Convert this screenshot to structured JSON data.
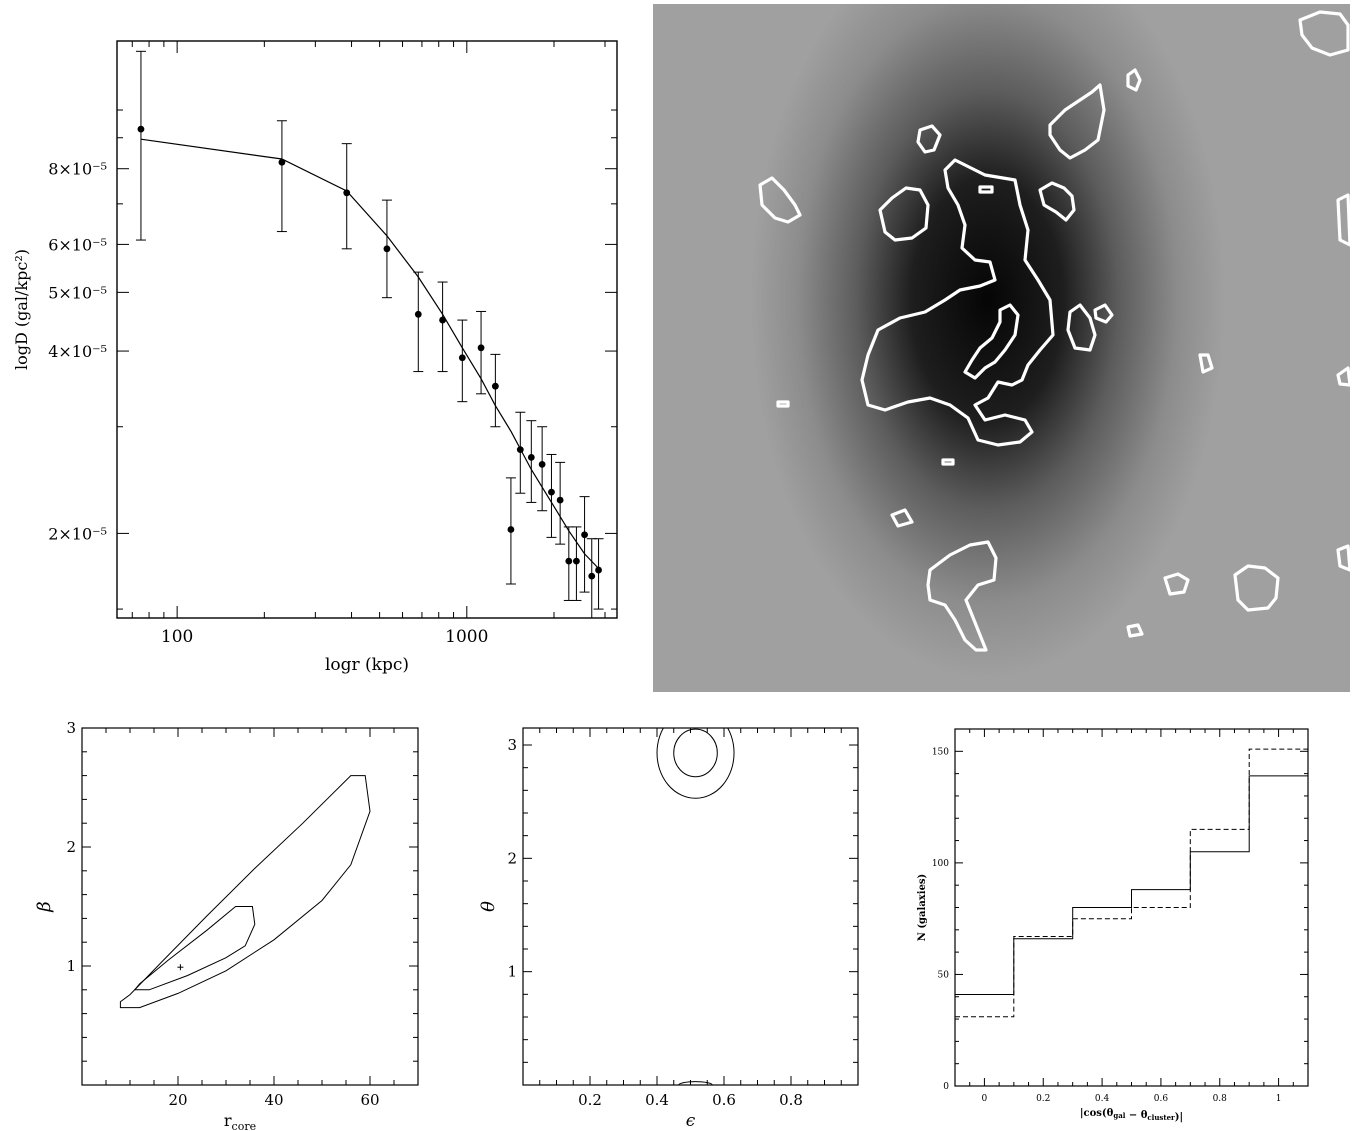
{
  "chart_data": [
    {
      "type": "scatter",
      "panel": "radial-profile",
      "xlabel": "logr (kpc)",
      "ylabel": "logD (gal/kpc²)",
      "xscale": "log",
      "yscale": "log",
      "xlim": [
        62,
        3300
      ],
      "ylim": [
        1.45e-05,
        0.00013
      ],
      "x_ticks": [
        {
          "value": 100,
          "label": "100"
        },
        {
          "value": 1000,
          "label": "1000"
        }
      ],
      "y_ticks": [
        {
          "value": 8e-05,
          "label": "8×10⁻⁵"
        },
        {
          "value": 6e-05,
          "label": "6×10⁻⁵"
        },
        {
          "value": 5e-05,
          "label": "5×10⁻⁵"
        },
        {
          "value": 4e-05,
          "label": "4×10⁻⁵"
        },
        {
          "value": 2e-05,
          "label": "2×10⁻⁵"
        }
      ],
      "points": [
        {
          "x": 75,
          "y": 9.3e-05,
          "lo": 6.1e-05,
          "hi": 0.000125
        },
        {
          "x": 230,
          "y": 8.2e-05,
          "lo": 6.3e-05,
          "hi": 9.6e-05
        },
        {
          "x": 385,
          "y": 7.3e-05,
          "lo": 5.9e-05,
          "hi": 8.8e-05
        },
        {
          "x": 530,
          "y": 5.9e-05,
          "lo": 4.9e-05,
          "hi": 7.1e-05
        },
        {
          "x": 680,
          "y": 4.6e-05,
          "lo": 3.7e-05,
          "hi": 5.4e-05
        },
        {
          "x": 825,
          "y": 4.5e-05,
          "lo": 3.7e-05,
          "hi": 5.2e-05
        },
        {
          "x": 965,
          "y": 3.9e-05,
          "lo": 3.3e-05,
          "hi": 4.5e-05
        },
        {
          "x": 1120,
          "y": 4.05e-05,
          "lo": 3.4e-05,
          "hi": 4.65e-05
        },
        {
          "x": 1255,
          "y": 3.5e-05,
          "lo": 3e-05,
          "hi": 3.95e-05
        },
        {
          "x": 1420,
          "y": 2.03e-05,
          "lo": 1.65e-05,
          "hi": 2.47e-05
        },
        {
          "x": 1530,
          "y": 2.75e-05,
          "lo": 2.33e-05,
          "hi": 3.17e-05
        },
        {
          "x": 1670,
          "y": 2.67e-05,
          "lo": 2.25e-05,
          "hi": 3.07e-05
        },
        {
          "x": 1820,
          "y": 2.6e-05,
          "lo": 2.18e-05,
          "hi": 3e-05
        },
        {
          "x": 1960,
          "y": 2.34e-05,
          "lo": 1.97e-05,
          "hi": 2.7e-05
        },
        {
          "x": 2100,
          "y": 2.27e-05,
          "lo": 1.92e-05,
          "hi": 2.62e-05
        },
        {
          "x": 2250,
          "y": 1.8e-05,
          "lo": 1.55e-05,
          "hi": 2.05e-05
        },
        {
          "x": 2390,
          "y": 1.8e-05,
          "lo": 1.55e-05,
          "hi": 2.05e-05
        },
        {
          "x": 2550,
          "y": 1.99e-05,
          "lo": 1.6e-05,
          "hi": 2.3e-05
        },
        {
          "x": 2700,
          "y": 1.7e-05,
          "lo": 1.45e-05,
          "hi": 1.96e-05
        },
        {
          "x": 2850,
          "y": 1.74e-05,
          "lo": 1.5e-05,
          "hi": 1.96e-05
        }
      ],
      "fit_curve": [
        [
          75,
          8.95e-05
        ],
        [
          230,
          8.3e-05
        ],
        [
          385,
          7.35e-05
        ],
        [
          530,
          6.2e-05
        ],
        [
          680,
          5.3e-05
        ],
        [
          825,
          4.6e-05
        ],
        [
          965,
          4.05e-05
        ],
        [
          1120,
          3.6e-05
        ],
        [
          1255,
          3.25e-05
        ],
        [
          1420,
          2.95e-05
        ],
        [
          1670,
          2.55e-05
        ],
        [
          1960,
          2.25e-05
        ],
        [
          2250,
          2.02e-05
        ],
        [
          2550,
          1.85e-05
        ],
        [
          2850,
          1.75e-05
        ]
      ]
    },
    {
      "type": "contour",
      "panel": "rcore-beta",
      "xlabel": "r",
      "xlabel_sub": "core",
      "ylabel": "β",
      "xlim": [
        0,
        70
      ],
      "ylim": [
        0,
        3
      ],
      "x_ticks": [
        20,
        40,
        60
      ],
      "y_ticks": [
        1,
        2,
        3
      ],
      "best_fit": {
        "x": 20.5,
        "y": 0.99
      },
      "contours": [
        [
          [
            8,
            0.65
          ],
          [
            12,
            0.65
          ],
          [
            20,
            0.77
          ],
          [
            30,
            0.96
          ],
          [
            40,
            1.22
          ],
          [
            50,
            1.55
          ],
          [
            56,
            1.85
          ],
          [
            60,
            2.3
          ],
          [
            59,
            2.6
          ],
          [
            56,
            2.6
          ],
          [
            46,
            2.2
          ],
          [
            36,
            1.82
          ],
          [
            26,
            1.42
          ],
          [
            17,
            1.05
          ],
          [
            10,
            0.76
          ],
          [
            8,
            0.7
          ],
          [
            8,
            0.65
          ]
        ],
        [
          [
            11,
            0.8
          ],
          [
            14,
            0.8
          ],
          [
            22,
            0.92
          ],
          [
            30,
            1.07
          ],
          [
            34,
            1.17
          ],
          [
            36,
            1.35
          ],
          [
            35.5,
            1.5
          ],
          [
            32,
            1.5
          ],
          [
            26,
            1.3
          ],
          [
            18,
            1.05
          ],
          [
            12,
            0.85
          ],
          [
            11,
            0.8
          ]
        ]
      ]
    },
    {
      "type": "contour",
      "panel": "epsilon-theta",
      "xlabel": "ϵ",
      "ylabel": "θ",
      "xlim": [
        0,
        1
      ],
      "ylim": [
        0,
        3.15
      ],
      "x_ticks": [
        0.2,
        0.4,
        0.6,
        0.8
      ],
      "y_ticks": [
        1,
        2,
        3
      ],
      "contours": [
        {
          "cx": 0.515,
          "cy": 2.93,
          "rx": 0.065,
          "ry": 0.21
        },
        {
          "cx": 0.515,
          "cy": 2.93,
          "rx": 0.115,
          "ry": 0.4
        },
        {
          "cx": 0.515,
          "cy": 0.0,
          "rx": 0.05,
          "ry": 0.03
        }
      ]
    },
    {
      "type": "histogram",
      "panel": "alignment-histogram",
      "xlabel": "|cos(θ",
      "xlabel_sub1": "gal",
      "xlabel_mid": " − θ",
      "xlabel_sub2": "cluster",
      "xlabel_end": ")|",
      "ylabel": "N (galaxies)",
      "xlim": [
        -0.1,
        1.1
      ],
      "ylim": [
        0,
        160
      ],
      "x_ticks": [
        0,
        0.2,
        0.4,
        0.6,
        0.8,
        1
      ],
      "y_ticks": [
        0,
        50,
        100,
        150
      ],
      "bin_edges": [
        -0.1,
        0.1,
        0.3,
        0.5,
        0.7,
        0.9,
        1.1
      ],
      "series": [
        {
          "style": "solid",
          "values": [
            41,
            66,
            80,
            88,
            105,
            139
          ]
        },
        {
          "style": "dashed",
          "values": [
            31,
            67,
            75,
            80,
            115,
            151
          ]
        }
      ]
    }
  ],
  "density_map": {
    "contours": [
      [
        [
          955,
          160
        ],
        [
          985,
          175
        ],
        [
          1015,
          180
        ],
        [
          1020,
          205
        ],
        [
          1028,
          230
        ],
        [
          1025,
          260
        ],
        [
          1038,
          280
        ],
        [
          1050,
          300
        ],
        [
          1053,
          335
        ],
        [
          1040,
          350
        ],
        [
          1028,
          365
        ],
        [
          1022,
          380
        ],
        [
          1012,
          385
        ],
        [
          998,
          382
        ],
        [
          988,
          398
        ],
        [
          975,
          405
        ],
        [
          985,
          420
        ],
        [
          1005,
          415
        ],
        [
          1025,
          420
        ],
        [
          1032,
          432
        ],
        [
          1020,
          442
        ],
        [
          998,
          445
        ],
        [
          978,
          440
        ],
        [
          968,
          418
        ],
        [
          950,
          405
        ],
        [
          930,
          398
        ],
        [
          908,
          402
        ],
        [
          885,
          410
        ],
        [
          868,
          405
        ],
        [
          862,
          380
        ],
        [
          868,
          355
        ],
        [
          878,
          330
        ],
        [
          900,
          318
        ],
        [
          925,
          312
        ],
        [
          945,
          300
        ],
        [
          960,
          290
        ],
        [
          980,
          286
        ],
        [
          995,
          280
        ],
        [
          990,
          262
        ],
        [
          975,
          260
        ],
        [
          962,
          248
        ],
        [
          965,
          225
        ],
        [
          958,
          205
        ],
        [
          948,
          188
        ],
        [
          945,
          170
        ],
        [
          955,
          160
        ]
      ],
      [
        [
          1000,
          310
        ],
        [
          1010,
          305
        ],
        [
          1018,
          315
        ],
        [
          1015,
          335
        ],
        [
          1005,
          350
        ],
        [
          995,
          362
        ],
        [
          985,
          368
        ],
        [
          975,
          378
        ],
        [
          965,
          372
        ],
        [
          972,
          360
        ],
        [
          980,
          348
        ],
        [
          992,
          338
        ],
        [
          1000,
          322
        ],
        [
          1000,
          310
        ]
      ],
      [
        [
          880,
          210
        ],
        [
          892,
          198
        ],
        [
          906,
          188
        ],
        [
          920,
          190
        ],
        [
          928,
          205
        ],
        [
          926,
          228
        ],
        [
          912,
          238
        ],
        [
          895,
          240
        ],
        [
          885,
          232
        ],
        [
          880,
          210
        ]
      ],
      [
        [
          760,
          185
        ],
        [
          772,
          178
        ],
        [
          784,
          190
        ],
        [
          795,
          205
        ],
        [
          800,
          215
        ],
        [
          788,
          222
        ],
        [
          775,
          218
        ],
        [
          762,
          205
        ],
        [
          760,
          185
        ]
      ],
      [
        [
          920,
          130
        ],
        [
          932,
          126
        ],
        [
          940,
          135
        ],
        [
          934,
          150
        ],
        [
          925,
          152
        ],
        [
          918,
          142
        ],
        [
          920,
          130
        ]
      ],
      [
        [
          1050,
          125
        ],
        [
          1065,
          110
        ],
        [
          1080,
          100
        ],
        [
          1092,
          92
        ],
        [
          1100,
          85
        ],
        [
          1104,
          110
        ],
        [
          1098,
          140
        ],
        [
          1085,
          150
        ],
        [
          1070,
          158
        ],
        [
          1060,
          150
        ],
        [
          1050,
          135
        ],
        [
          1050,
          125
        ]
      ],
      [
        [
          1040,
          190
        ],
        [
          1052,
          183
        ],
        [
          1064,
          188
        ],
        [
          1072,
          196
        ],
        [
          1074,
          210
        ],
        [
          1066,
          220
        ],
        [
          1056,
          212
        ],
        [
          1044,
          205
        ],
        [
          1040,
          190
        ]
      ],
      [
        [
          1070,
          312
        ],
        [
          1080,
          305
        ],
        [
          1090,
          318
        ],
        [
          1095,
          335
        ],
        [
          1090,
          350
        ],
        [
          1075,
          348
        ],
        [
          1068,
          330
        ],
        [
          1070,
          312
        ]
      ],
      [
        [
          1095,
          310
        ],
        [
          1105,
          305
        ],
        [
          1112,
          315
        ],
        [
          1106,
          322
        ],
        [
          1096,
          318
        ],
        [
          1095,
          310
        ]
      ],
      [
        [
          1128,
          75
        ],
        [
          1135,
          70
        ],
        [
          1140,
          80
        ],
        [
          1136,
          90
        ],
        [
          1128,
          86
        ],
        [
          1128,
          75
        ]
      ],
      [
        [
          1300,
          20
        ],
        [
          1320,
          12
        ],
        [
          1340,
          14
        ],
        [
          1348,
          25
        ],
        [
          1348,
          50
        ],
        [
          1330,
          55
        ],
        [
          1312,
          48
        ],
        [
          1302,
          35
        ],
        [
          1300,
          20
        ]
      ],
      [
        [
          1338,
          200
        ],
        [
          1348,
          195
        ],
        [
          1350,
          245
        ],
        [
          1340,
          240
        ],
        [
          1338,
          200
        ]
      ],
      [
        [
          1338,
          375
        ],
        [
          1348,
          368
        ],
        [
          1350,
          385
        ],
        [
          1340,
          384
        ],
        [
          1338,
          375
        ]
      ],
      [
        [
          1200,
          355
        ],
        [
          1208,
          355
        ],
        [
          1212,
          368
        ],
        [
          1203,
          372
        ],
        [
          1200,
          355
        ]
      ],
      [
        [
          930,
          570
        ],
        [
          950,
          555
        ],
        [
          970,
          545
        ],
        [
          988,
          542
        ],
        [
          996,
          558
        ],
        [
          994,
          580
        ],
        [
          978,
          585
        ],
        [
          966,
          600
        ],
        [
          976,
          625
        ],
        [
          986,
          650
        ],
        [
          976,
          650
        ],
        [
          965,
          640
        ],
        [
          955,
          620
        ],
        [
          945,
          605
        ],
        [
          930,
          600
        ],
        [
          928,
          585
        ],
        [
          930,
          570
        ]
      ],
      [
        [
          1235,
          575
        ],
        [
          1248,
          566
        ],
        [
          1265,
          568
        ],
        [
          1278,
          578
        ],
        [
          1276,
          598
        ],
        [
          1268,
          608
        ],
        [
          1248,
          610
        ],
        [
          1238,
          600
        ],
        [
          1235,
          575
        ]
      ],
      [
        [
          1165,
          578
        ],
        [
          1178,
          574
        ],
        [
          1188,
          580
        ],
        [
          1184,
          592
        ],
        [
          1170,
          594
        ],
        [
          1165,
          578
        ]
      ],
      [
        [
          1338,
          550
        ],
        [
          1348,
          546
        ],
        [
          1350,
          570
        ],
        [
          1340,
          566
        ],
        [
          1338,
          550
        ]
      ],
      [
        [
          892,
          515
        ],
        [
          905,
          510
        ],
        [
          912,
          522
        ],
        [
          898,
          526
        ],
        [
          892,
          515
        ]
      ],
      [
        [
          1128,
          627
        ],
        [
          1138,
          625
        ],
        [
          1142,
          634
        ],
        [
          1130,
          636
        ],
        [
          1128,
          627
        ]
      ],
      [
        [
          980,
          187
        ],
        [
          992,
          187
        ],
        [
          992,
          192
        ],
        [
          980,
          192
        ],
        [
          980,
          187
        ]
      ],
      [
        [
          778,
          402
        ],
        [
          788,
          402
        ],
        [
          788,
          406
        ],
        [
          778,
          406
        ],
        [
          778,
          402
        ]
      ],
      [
        [
          943,
          460
        ],
        [
          953,
          460
        ],
        [
          953,
          464
        ],
        [
          943,
          464
        ],
        [
          943,
          460
        ]
      ]
    ]
  }
}
